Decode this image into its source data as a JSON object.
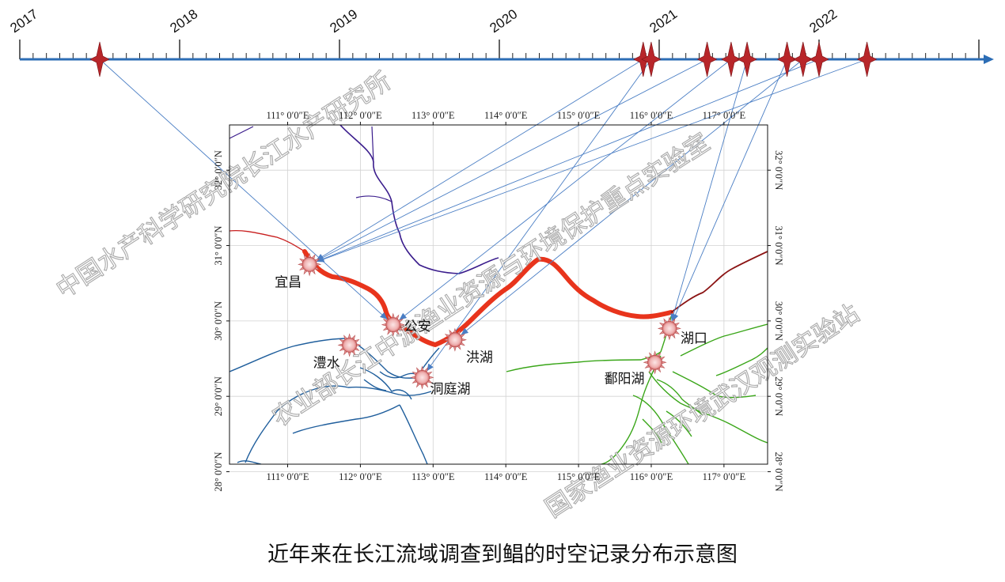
{
  "caption": "近年来在长江流域调查到鲳的时空记录分布示意图",
  "timeline": {
    "years": [
      "2017",
      "2018",
      "2019",
      "2020",
      "2021",
      "2022"
    ],
    "events": [
      {
        "date": "2017.5",
        "site": "公安"
      },
      {
        "date": "2020.9",
        "site": "宜昌"
      },
      {
        "date": "2020.95",
        "site": "洞庭湖"
      },
      {
        "date": "2021.3",
        "site": "宜昌"
      },
      {
        "date": "2021.45",
        "site": "公安"
      },
      {
        "date": "2021.55",
        "site": "湖口"
      },
      {
        "date": "2021.8",
        "site": "湖口"
      },
      {
        "date": "2021.9",
        "site": "洪湖"
      },
      {
        "date": "2022.0",
        "site": "宜昌"
      },
      {
        "date": "2022.3",
        "site": "宜昌"
      }
    ]
  },
  "map": {
    "lon_range": [
      110.2,
      117.6
    ],
    "lat_range": [
      28.1,
      32.6
    ],
    "lon_ticks": [
      {
        "value": 111,
        "label": "111° 0′0″E"
      },
      {
        "value": 112,
        "label": "112° 0′0″E"
      },
      {
        "value": 113,
        "label": "113° 0′0″E"
      },
      {
        "value": 114,
        "label": "114° 0′0″E"
      },
      {
        "value": 115,
        "label": "115° 0′0″E"
      },
      {
        "value": 116,
        "label": "116° 0′0″E"
      },
      {
        "value": 117,
        "label": "117° 0′0″E"
      }
    ],
    "lat_ticks": [
      {
        "value": 28,
        "label": "28° 0′0″N"
      },
      {
        "value": 29,
        "label": "29° 0′0″N"
      },
      {
        "value": 30,
        "label": "30° 0′0″N"
      },
      {
        "value": 31,
        "label": "31° 0′0″N"
      },
      {
        "value": 32,
        "label": "32° 0′0″N"
      }
    ],
    "sites": [
      {
        "name": "宜昌",
        "lon": 111.3,
        "lat": 30.75
      },
      {
        "name": "公安",
        "lon": 112.45,
        "lat": 29.95
      },
      {
        "name": "洪湖",
        "lon": 113.3,
        "lat": 29.75
      },
      {
        "name": "澧水",
        "lon": 111.85,
        "lat": 29.68
      },
      {
        "name": "洞庭湖",
        "lon": 112.85,
        "lat": 29.25
      },
      {
        "name": "湖口",
        "lon": 116.25,
        "lat": 29.9
      },
      {
        "name": "鄱阳湖",
        "lon": 116.05,
        "lat": 29.45
      }
    ],
    "colors": {
      "yangtze": "#e8341c",
      "upper_yangtze": "#c81e1e",
      "han_river": "#3a1c8c",
      "dongting": "#1f5e9c",
      "poyang": "#3aa619",
      "timeline": "#2c6db5",
      "marker": "#b8262a",
      "link": "#4a7ec4"
    }
  },
  "watermarks": [
    "中国水产科学研究院长江水产研究所",
    "农业部长江中游渔业资源与环境保护重点实验室",
    "国家渔业资源环境武汉观测实验站"
  ]
}
